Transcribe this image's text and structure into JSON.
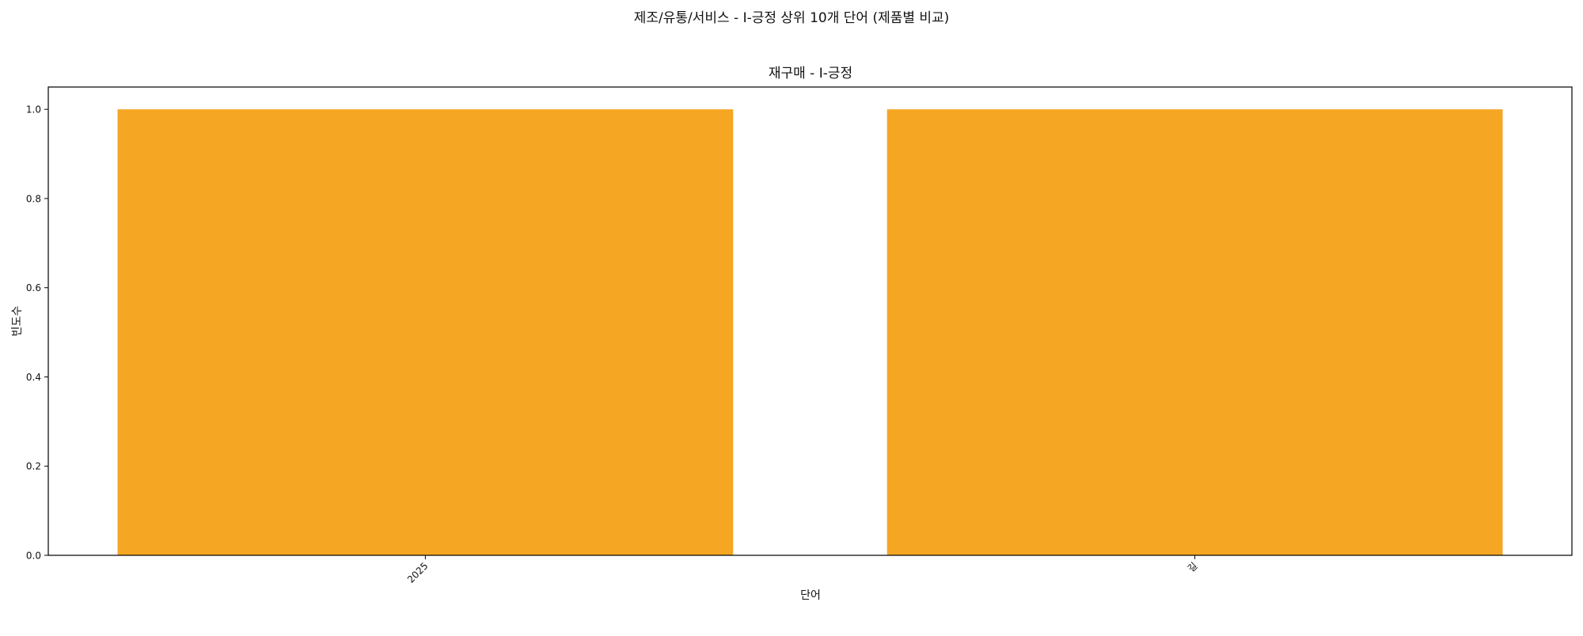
{
  "figure": {
    "suptitle": "제조/유통/서비스 - I-긍정 상위 10개 단어 (제품별 비교)"
  },
  "chart_data": {
    "type": "bar",
    "title": "재구매 - I-긍정",
    "xlabel": "단어",
    "ylabel": "빈도수",
    "categories": [
      "2025",
      "길"
    ],
    "values": [
      1,
      1
    ],
    "ylim": [
      0,
      1.05
    ],
    "yticks": [
      0.0,
      0.2,
      0.4,
      0.6,
      0.8,
      1.0
    ],
    "ytick_labels": [
      "0.0",
      "0.2",
      "0.4",
      "0.6",
      "0.8",
      "1.0"
    ],
    "bar_color": "#f5a623",
    "grid": false,
    "legend": "none"
  }
}
